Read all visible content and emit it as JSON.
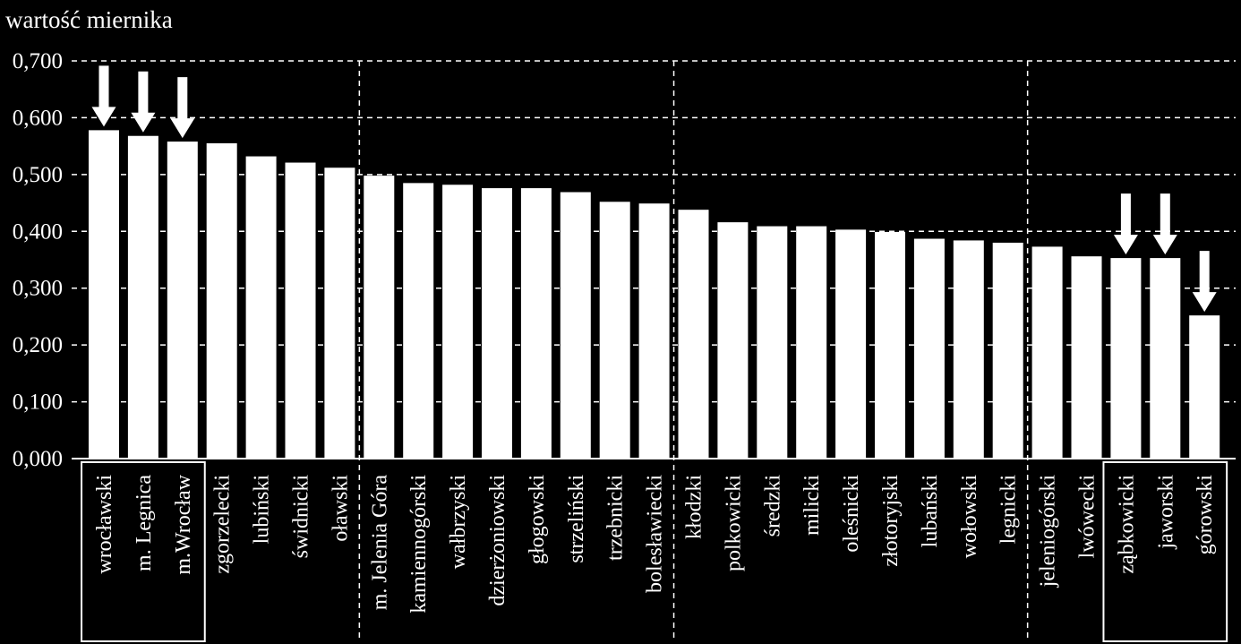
{
  "chart_data": {
    "type": "bar",
    "ylabel": "wartość miernika",
    "ylim": [
      0,
      0.7
    ],
    "y_ticks": [
      "0,000",
      "0,100",
      "0,200",
      "0,300",
      "0,400",
      "0,500",
      "0,600",
      "0,700"
    ],
    "grid": "horizontal dashed",
    "categories": [
      "wrocławski",
      "m. Legnica",
      "m.Wrocław",
      "zgorzelecki",
      "lubiński",
      "świdnicki",
      "oławski",
      "m. Jelenia Góra",
      "kamiennogórski",
      "wałbrzyski",
      "dzierżoniowski",
      "głogowski",
      "strzeliński",
      "trzebnicki",
      "bolesławiecki",
      "kłodzki",
      "polkowicki",
      "średzki",
      "milicki",
      "oleśnicki",
      "złotoryjski",
      "lubański",
      "wołowski",
      "legnicki",
      "jeleniogórski",
      "lwówecki",
      "ząbkowicki",
      "jaworski",
      "górowski"
    ],
    "values": [
      0.578,
      0.568,
      0.558,
      0.555,
      0.532,
      0.521,
      0.512,
      0.498,
      0.485,
      0.482,
      0.476,
      0.476,
      0.469,
      0.452,
      0.449,
      0.438,
      0.416,
      0.409,
      0.409,
      0.403,
      0.399,
      0.387,
      0.384,
      0.38,
      0.373,
      0.356,
      0.353,
      0.353,
      0.252
    ],
    "group_separators_after": [
      6,
      14,
      23
    ],
    "highlight_boxes": [
      [
        0,
        2
      ],
      [
        26,
        28
      ]
    ],
    "arrows_on": [
      0,
      1,
      2,
      26,
      27,
      28
    ],
    "colors": {
      "background": "#000000",
      "bars": "#ffffff",
      "text": "#ffffff"
    }
  }
}
